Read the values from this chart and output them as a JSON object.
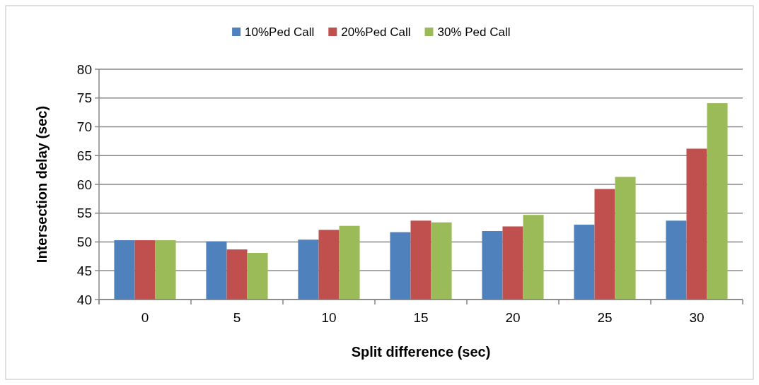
{
  "chart_data": {
    "type": "bar",
    "xlabel": "Split difference (sec)",
    "ylabel": "Intersection delay (sec)",
    "categories": [
      "0",
      "5",
      "10",
      "15",
      "20",
      "25",
      "30"
    ],
    "series": [
      {
        "name": "10%Ped Call",
        "color": "#4f81bd",
        "values": [
          50.3,
          50.1,
          50.4,
          51.7,
          51.9,
          53.0,
          53.7
        ]
      },
      {
        "name": "20%Ped Call",
        "color": "#c0504d",
        "values": [
          50.3,
          48.7,
          52.1,
          53.7,
          52.7,
          59.2,
          66.2
        ]
      },
      {
        "name": "30% Ped Call",
        "color": "#9bbb59",
        "values": [
          50.3,
          48.1,
          52.8,
          53.4,
          54.7,
          61.3,
          74.1
        ]
      }
    ],
    "ylim": [
      40,
      80
    ],
    "yticks": [
      40,
      45,
      50,
      55,
      60,
      65,
      70,
      75,
      80
    ],
    "grid": "y",
    "legend": "top"
  }
}
